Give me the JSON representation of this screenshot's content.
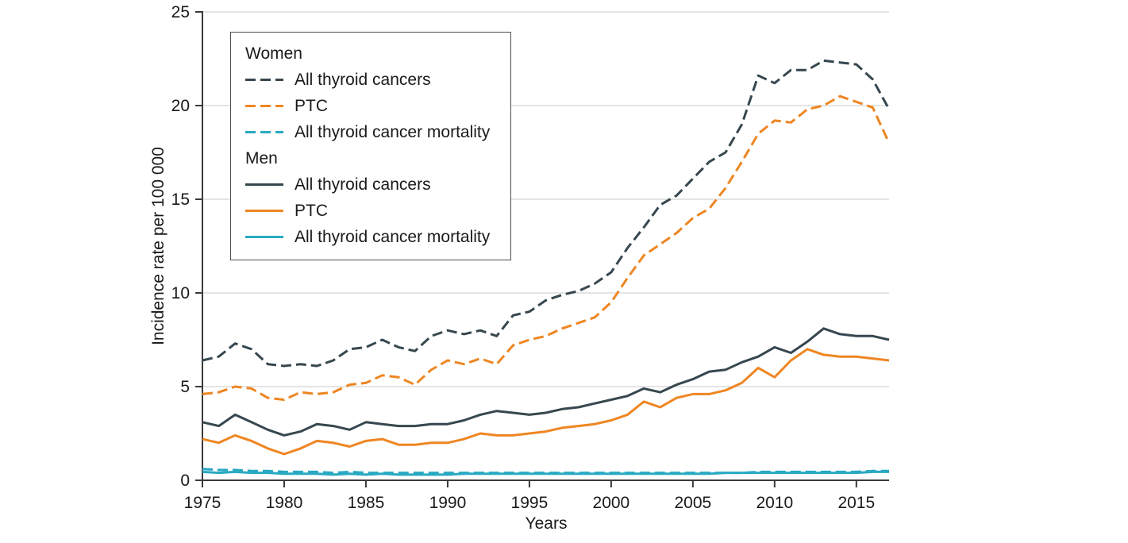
{
  "chart_data": {
    "type": "line",
    "title": "",
    "xlabel": "Years",
    "ylabel": "Incidence rate per 100 000",
    "x_range": [
      1975,
      2017
    ],
    "y_range": [
      0,
      25
    ],
    "x_ticks": [
      1975,
      1980,
      1985,
      1990,
      1995,
      2000,
      2005,
      2010,
      2015
    ],
    "y_ticks": [
      0,
      5,
      10,
      15,
      20,
      25
    ],
    "grid": "horizontal",
    "legend_position": "top-left-inside",
    "colors": {
      "dark": "#37474f",
      "orange": "#ee8622",
      "teal": "#29a9c2",
      "grid": "#dcdcdc",
      "axis": "#3a3a3a",
      "text": "#1a1a1a"
    },
    "years": [
      1975,
      1976,
      1977,
      1978,
      1979,
      1980,
      1981,
      1982,
      1983,
      1984,
      1985,
      1986,
      1987,
      1988,
      1989,
      1990,
      1991,
      1992,
      1993,
      1994,
      1995,
      1996,
      1997,
      1998,
      1999,
      2000,
      2001,
      2002,
      2003,
      2004,
      2005,
      2006,
      2007,
      2008,
      2009,
      2010,
      2011,
      2012,
      2013,
      2014,
      2015,
      2016,
      2017
    ],
    "series": [
      {
        "id": "women-all-thyroid-cancers",
        "group": "Women",
        "name": "All thyroid cancers",
        "color": "#37474f",
        "dash": "13 6",
        "values": [
          6.4,
          6.6,
          7.3,
          7.0,
          6.2,
          6.1,
          6.2,
          6.1,
          6.4,
          7.0,
          7.1,
          7.5,
          7.1,
          6.9,
          7.7,
          8.0,
          7.8,
          8.0,
          7.7,
          8.8,
          9.0,
          9.6,
          9.9,
          10.1,
          10.5,
          11.1,
          12.4,
          13.5,
          14.7,
          15.2,
          16.1,
          17.0,
          17.5,
          19.0,
          21.6,
          21.2,
          21.9,
          21.9,
          22.4,
          22.3,
          22.2,
          21.4,
          19.8
        ]
      },
      {
        "id": "women-ptc",
        "group": "Women",
        "name": "PTC",
        "color": "#ee8622",
        "dash": "13 6",
        "values": [
          4.6,
          4.7,
          5.0,
          4.9,
          4.4,
          4.3,
          4.7,
          4.6,
          4.7,
          5.1,
          5.2,
          5.6,
          5.5,
          5.1,
          5.9,
          6.4,
          6.2,
          6.5,
          6.2,
          7.2,
          7.5,
          7.7,
          8.1,
          8.4,
          8.7,
          9.5,
          10.8,
          12.0,
          12.6,
          13.2,
          14.0,
          14.5,
          15.6,
          17.0,
          18.5,
          19.2,
          19.1,
          19.8,
          20.0,
          20.5,
          20.2,
          19.9,
          18.0
        ]
      },
      {
        "id": "women-all-thyroid-cancer-mortality",
        "group": "Women",
        "name": "All thyroid cancer mortality",
        "color": "#29a9c2",
        "dash": "13 6",
        "values": [
          0.6,
          0.55,
          0.55,
          0.5,
          0.5,
          0.45,
          0.45,
          0.45,
          0.4,
          0.45,
          0.4,
          0.4,
          0.4,
          0.4,
          0.4,
          0.4,
          0.4,
          0.4,
          0.4,
          0.4,
          0.4,
          0.4,
          0.4,
          0.4,
          0.4,
          0.4,
          0.4,
          0.4,
          0.4,
          0.4,
          0.4,
          0.4,
          0.4,
          0.4,
          0.45,
          0.45,
          0.45,
          0.45,
          0.45,
          0.45,
          0.45,
          0.5,
          0.5
        ]
      },
      {
        "id": "men-all-thyroid-cancers",
        "group": "Men",
        "name": "All thyroid cancers",
        "color": "#37474f",
        "dash": null,
        "values": [
          3.1,
          2.9,
          3.5,
          3.1,
          2.7,
          2.4,
          2.6,
          3.0,
          2.9,
          2.7,
          3.1,
          3.0,
          2.9,
          2.9,
          3.0,
          3.0,
          3.2,
          3.5,
          3.7,
          3.6,
          3.5,
          3.6,
          3.8,
          3.9,
          4.1,
          4.3,
          4.5,
          4.9,
          4.7,
          5.1,
          5.4,
          5.8,
          5.9,
          6.3,
          6.6,
          7.1,
          6.8,
          7.4,
          8.1,
          7.8,
          7.7,
          7.7,
          7.5
        ]
      },
      {
        "id": "men-ptc",
        "group": "Men",
        "name": "PTC",
        "color": "#ee8622",
        "dash": null,
        "values": [
          2.2,
          2.0,
          2.4,
          2.1,
          1.7,
          1.4,
          1.7,
          2.1,
          2.0,
          1.8,
          2.1,
          2.2,
          1.9,
          1.9,
          2.0,
          2.0,
          2.2,
          2.5,
          2.4,
          2.4,
          2.5,
          2.6,
          2.8,
          2.9,
          3.0,
          3.2,
          3.5,
          4.2,
          3.9,
          4.4,
          4.6,
          4.6,
          4.8,
          5.2,
          6.0,
          5.5,
          6.4,
          7.0,
          6.7,
          6.6,
          6.6,
          6.5,
          6.4
        ]
      },
      {
        "id": "men-all-thyroid-cancer-mortality",
        "group": "Men",
        "name": "All thyroid cancer mortality",
        "color": "#29a9c2",
        "dash": null,
        "values": [
          0.45,
          0.4,
          0.45,
          0.4,
          0.4,
          0.35,
          0.35,
          0.35,
          0.3,
          0.35,
          0.3,
          0.35,
          0.3,
          0.3,
          0.3,
          0.3,
          0.35,
          0.35,
          0.35,
          0.35,
          0.35,
          0.35,
          0.35,
          0.35,
          0.35,
          0.35,
          0.35,
          0.35,
          0.35,
          0.35,
          0.35,
          0.35,
          0.4,
          0.4,
          0.4,
          0.4,
          0.4,
          0.4,
          0.4,
          0.4,
          0.4,
          0.45,
          0.45
        ]
      }
    ]
  },
  "legend": {
    "groups": [
      {
        "label": "Women",
        "items": [
          {
            "label": "All thyroid cancers",
            "series": 0
          },
          {
            "label": "PTC",
            "series": 1
          },
          {
            "label": "All thyroid cancer mortality",
            "series": 2
          }
        ]
      },
      {
        "label": "Men",
        "items": [
          {
            "label": "All thyroid cancers",
            "series": 3
          },
          {
            "label": "PTC",
            "series": 4
          },
          {
            "label": "All thyroid cancer mortality",
            "series": 5
          }
        ]
      }
    ]
  }
}
